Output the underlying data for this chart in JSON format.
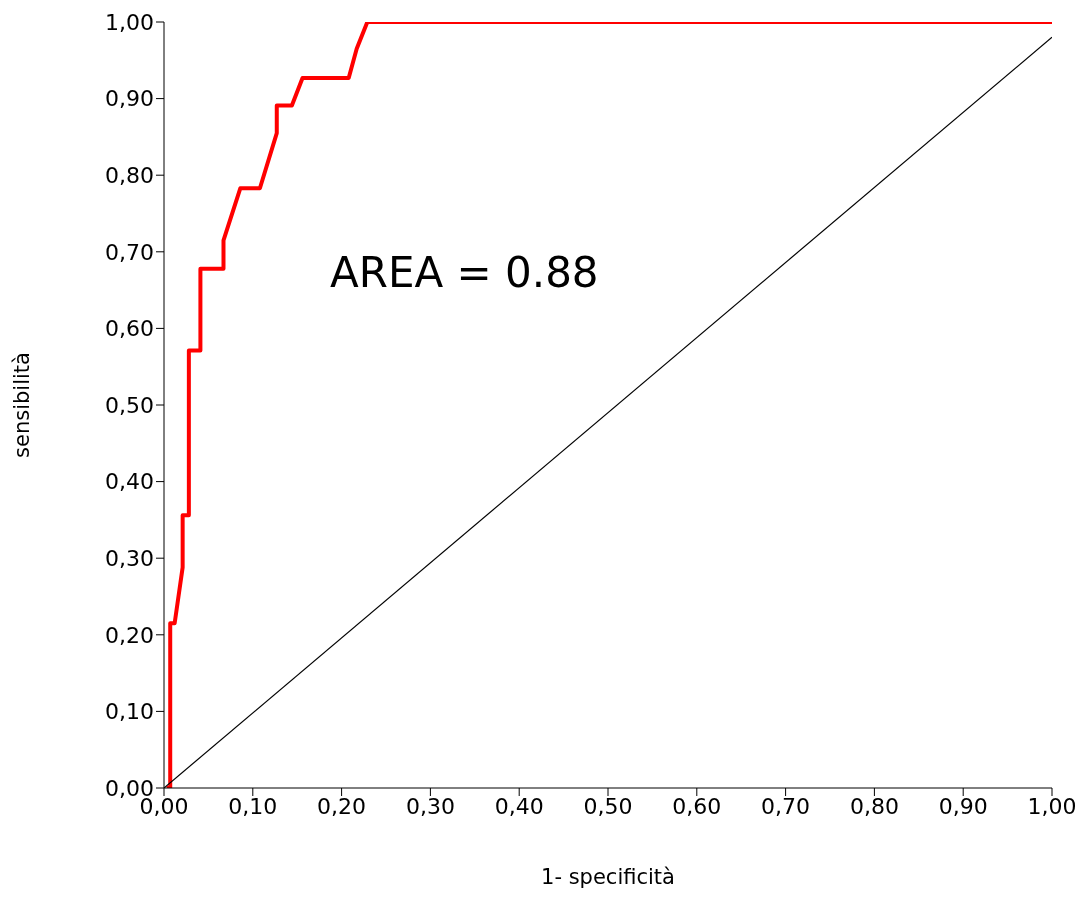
{
  "chart_data": {
    "type": "line",
    "xlabel": "1- specificità",
    "ylabel": "sensibilità",
    "annotations": [
      "AREA = 0.88"
    ],
    "series": [
      {
        "color": "#ff0000",
        "x": [
          0.003,
          0.007,
          0.007,
          0.012,
          0.021,
          0.021,
          0.028,
          0.028,
          0.041,
          0.041,
          0.067,
          0.067,
          0.086,
          0.108,
          0.127,
          0.127,
          0.144,
          0.156,
          0.208,
          0.217,
          0.229,
          1.0
        ],
        "values": [
          0.0,
          0.0,
          0.215,
          0.215,
          0.288,
          0.356,
          0.356,
          0.571,
          0.571,
          0.678,
          0.678,
          0.715,
          0.783,
          0.783,
          0.855,
          0.891,
          0.891,
          0.927,
          0.927,
          0.965,
          1.0,
          1.0
        ]
      },
      {
        "color": "#000000",
        "x": [
          0,
          1
        ],
        "values": [
          0,
          0.98
        ]
      }
    ],
    "xlim": [
      0,
      1
    ],
    "ylim": [
      0,
      1
    ],
    "xticks": [
      {
        "value": 0,
        "label": "0,00"
      },
      {
        "value": 0.1,
        "label": "0,10"
      },
      {
        "value": 0.2,
        "label": "0,20"
      },
      {
        "value": 0.3,
        "label": "0,30"
      },
      {
        "value": 0.4,
        "label": "0,40"
      },
      {
        "value": 0.5,
        "label": "0,50"
      },
      {
        "value": 0.6,
        "label": "0,60"
      },
      {
        "value": 0.7,
        "label": "0,70"
      },
      {
        "value": 0.8,
        "label": "0,80"
      },
      {
        "value": 0.9,
        "label": "0,90"
      },
      {
        "value": 1,
        "label": "1,00"
      }
    ],
    "yticks": [
      {
        "value": 0,
        "label": "0,00"
      },
      {
        "value": 0.1,
        "label": "0,10"
      },
      {
        "value": 0.2,
        "label": "0,20"
      },
      {
        "value": 0.3,
        "label": "0,30"
      },
      {
        "value": 0.4,
        "label": "0,40"
      },
      {
        "value": 0.5,
        "label": "0,50"
      },
      {
        "value": 0.6,
        "label": "0,60"
      },
      {
        "value": 0.7,
        "label": "0,70"
      },
      {
        "value": 0.8,
        "label": "0,80"
      },
      {
        "value": 0.9,
        "label": "0,90"
      },
      {
        "value": 1,
        "label": "1,00"
      }
    ],
    "grid": false,
    "legend": false,
    "marker": "none"
  }
}
